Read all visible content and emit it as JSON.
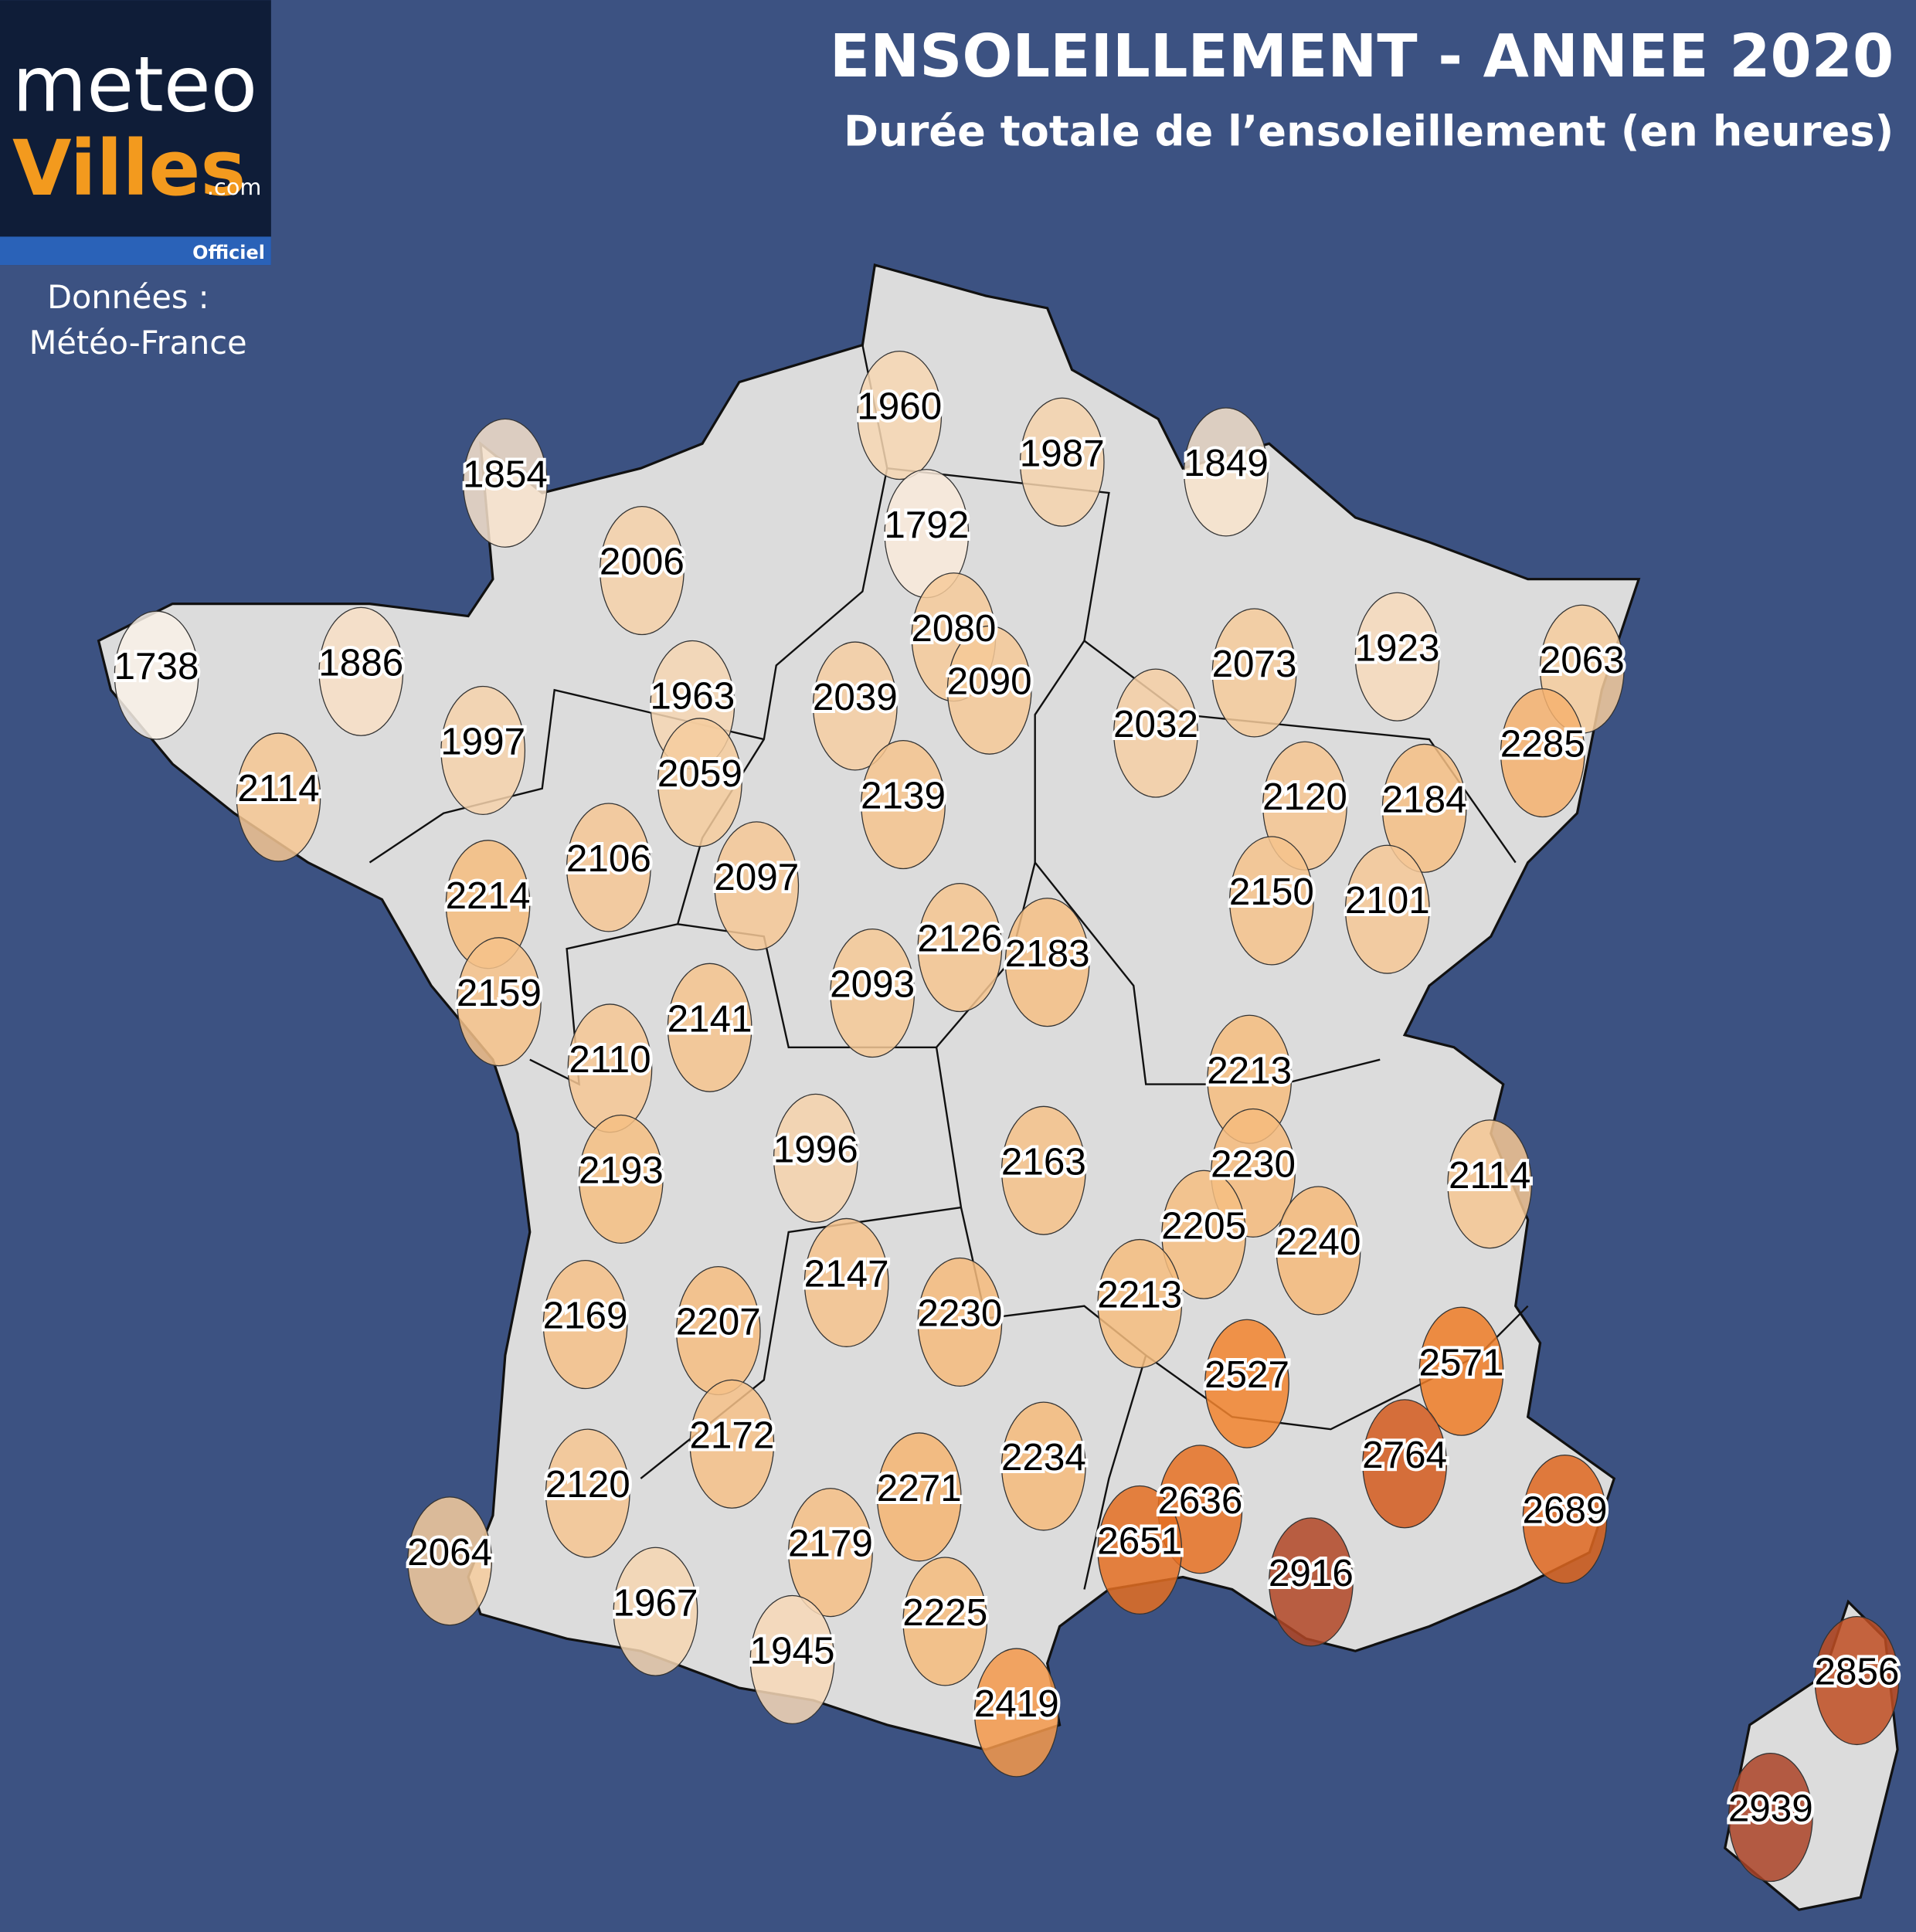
{
  "header": {
    "title": "ENSOLEILLEMENT - ANNEE 2020",
    "subtitle": "Durée totale de l’ensoleillement (en heures)"
  },
  "logo": {
    "line1": "meteo",
    "line2": "Villes",
    "suffix": ".com",
    "badge": "Officiel"
  },
  "source": {
    "line1": "Données :",
    "line2": "Météo-France"
  },
  "stations": [
    1960,
    1987,
    1849,
    1854,
    1792,
    2006,
    1738,
    1886,
    2080,
    2090,
    2073,
    1923,
    2063,
    1963,
    2039,
    2032,
    2285,
    1997,
    2114,
    2059,
    2139,
    2120,
    2184,
    2106,
    2097,
    2150,
    2101,
    2214,
    2126,
    2183,
    2093,
    2159,
    2141,
    2110,
    2213,
    1996,
    2163,
    2230,
    2114,
    2193,
    2205,
    2240,
    2147,
    2169,
    2207,
    2230,
    2213,
    2527,
    2571,
    2764,
    2172,
    2234,
    2271,
    2120,
    2636,
    2689,
    2651,
    2179,
    2064,
    2916,
    1967,
    2225,
    1945,
    2419,
    2856,
    2939
  ]
}
